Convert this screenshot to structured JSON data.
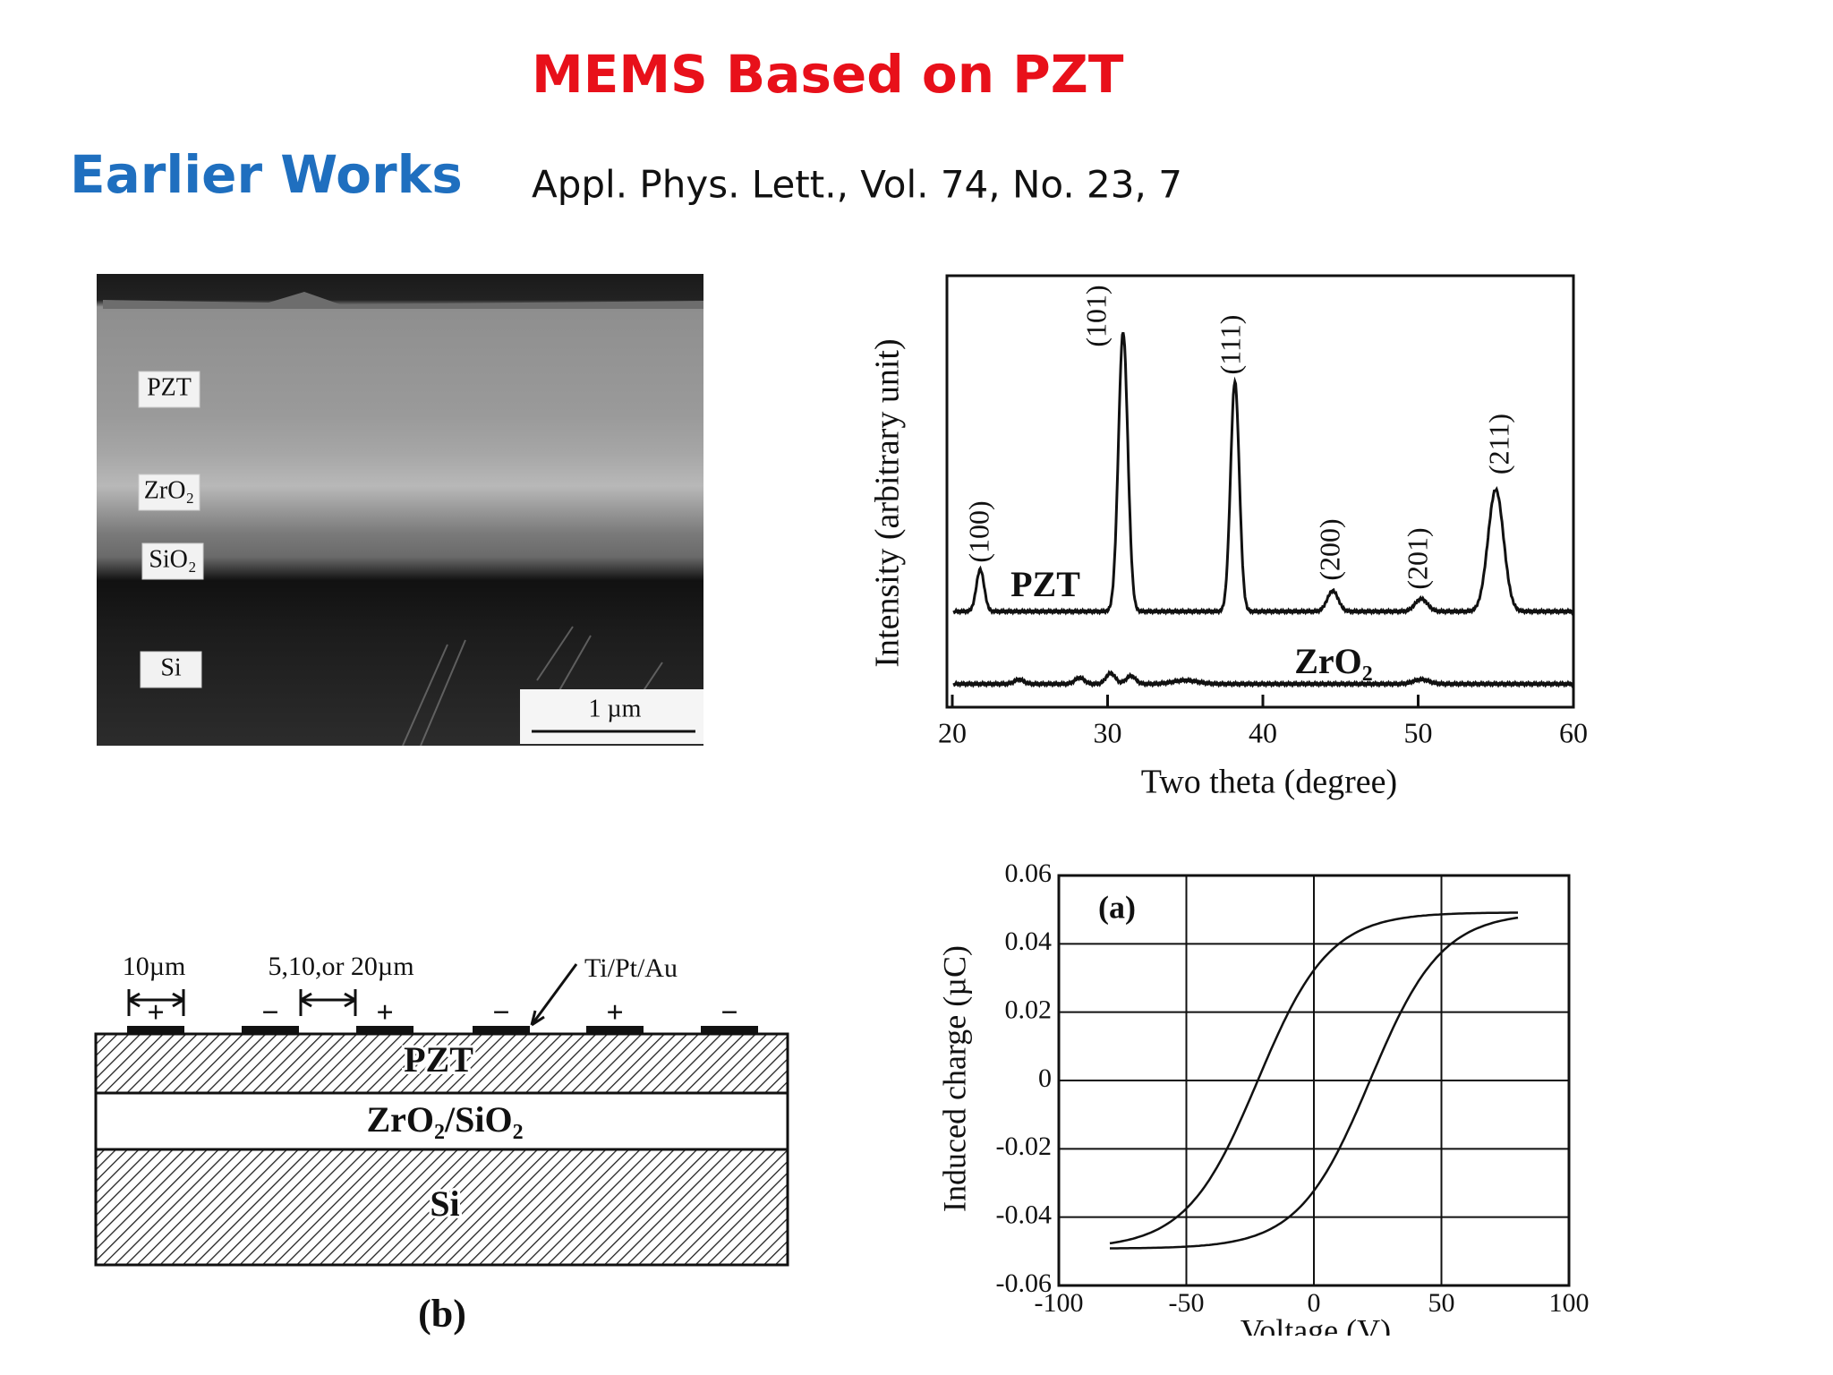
{
  "title": "MEMS Based on PZT",
  "subtitle": "Earlier Works",
  "reference": "Appl. Phys. Lett., Vol. 74, No. 23, 7",
  "sem_image": {
    "layers": [
      "PZT",
      "ZrO₂",
      "SiO₂",
      "Si"
    ],
    "scale_bar": "1 µm"
  },
  "xrd_plot": {
    "x_label": "Two theta (degree)",
    "y_label": "Intensity (arbitrary unit)",
    "x_ticks": [
      20,
      30,
      40,
      50,
      60
    ],
    "peaks": [
      "(100)",
      "(101)",
      "(111)",
      "(200)",
      "(201)",
      "(211)"
    ],
    "curves": [
      "PZT",
      "ZrO₂"
    ]
  },
  "schematic": {
    "dimensions": [
      "10µm",
      "5,10,or 20µm"
    ],
    "electrode": "Ti/Pt/Au",
    "polarities": [
      "+",
      "−",
      "+",
      "−",
      "+",
      "−"
    ],
    "layers": [
      "PZT",
      "ZrO₂/SiO₂",
      "Si"
    ],
    "caption": "(b)"
  },
  "hysteresis_plot": {
    "panel": "(a)",
    "x_label": "Voltage (V)",
    "y_label": "Induced charge (µC)",
    "x_ticks": [
      -100,
      -50,
      0,
      50,
      100
    ],
    "y_ticks": [
      0.06,
      0.04,
      0.02,
      0,
      -0.02,
      -0.04,
      -0.06
    ]
  }
}
